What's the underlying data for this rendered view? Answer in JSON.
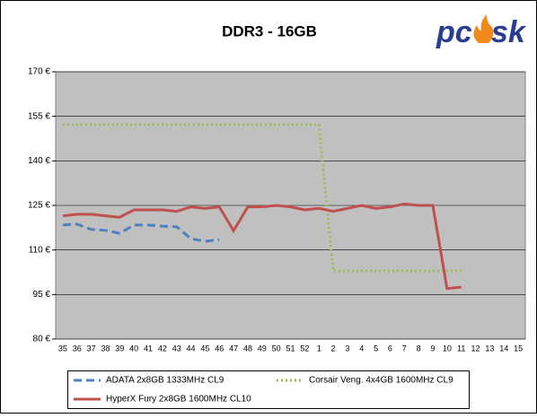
{
  "logo": {
    "left": "pc",
    "right": "sk"
  },
  "chart_data": {
    "type": "line",
    "title": "DDR3 - 16GB",
    "categories": [
      "35",
      "36",
      "37",
      "38",
      "39",
      "40",
      "41",
      "42",
      "43",
      "44",
      "45",
      "46",
      "47",
      "48",
      "49",
      "50",
      "51",
      "52",
      "1",
      "2",
      "3",
      "4",
      "5",
      "6",
      "7",
      "8",
      "9",
      "10",
      "11",
      "12",
      "13",
      "14",
      "15"
    ],
    "ylim": [
      80,
      170
    ],
    "yticks": [
      {
        "value": 80,
        "label": "80 €"
      },
      {
        "value": 95,
        "label": "95 €"
      },
      {
        "value": 110,
        "label": "110 €"
      },
      {
        "value": 125,
        "label": "125 €"
      },
      {
        "value": 140,
        "label": "140 €"
      },
      {
        "value": 155,
        "label": "155 €"
      },
      {
        "value": 170,
        "label": "170 €"
      }
    ],
    "grid": true,
    "series": [
      {
        "name": "ADATA 2x8GB 1333MHz CL9",
        "color": "#4f81bd",
        "dash": "dashed",
        "values": [
          118.4,
          118.7,
          116.9,
          116.6,
          115.6,
          118.4,
          118.4,
          118,
          117.8,
          113.8,
          112.9,
          113.5,
          null,
          null,
          null,
          null,
          null,
          null,
          null,
          null,
          null,
          null,
          null,
          null,
          null,
          null,
          null,
          null,
          null,
          null,
          null,
          null,
          null
        ]
      },
      {
        "name": "Corsair Veng. 4x4GB 1600MHz CL9",
        "color": "#9bbb59",
        "dash": "dotted",
        "values": [
          152.2,
          152.2,
          152.2,
          152.2,
          152.2,
          152.2,
          152.2,
          152.2,
          152.2,
          152.2,
          152.2,
          152.2,
          152.2,
          152.2,
          152.2,
          152.2,
          152.2,
          152.2,
          152.2,
          103,
          103,
          103,
          103,
          103,
          103,
          103,
          103,
          103,
          103,
          null,
          null,
          null,
          null
        ]
      },
      {
        "name": "HyperX Fury 2x8GB 1600MHz CL10",
        "color": "#c0504d",
        "dash": "solid",
        "values": [
          121.5,
          122,
          122,
          121.5,
          121,
          123.5,
          123.5,
          123.5,
          123,
          124.5,
          124,
          124.5,
          116.5,
          124.5,
          124.5,
          125,
          124.5,
          123.5,
          124,
          123,
          124,
          125,
          124,
          124.5,
          125.5,
          125,
          125,
          97,
          97.5,
          null,
          null,
          null,
          null
        ]
      }
    ]
  }
}
